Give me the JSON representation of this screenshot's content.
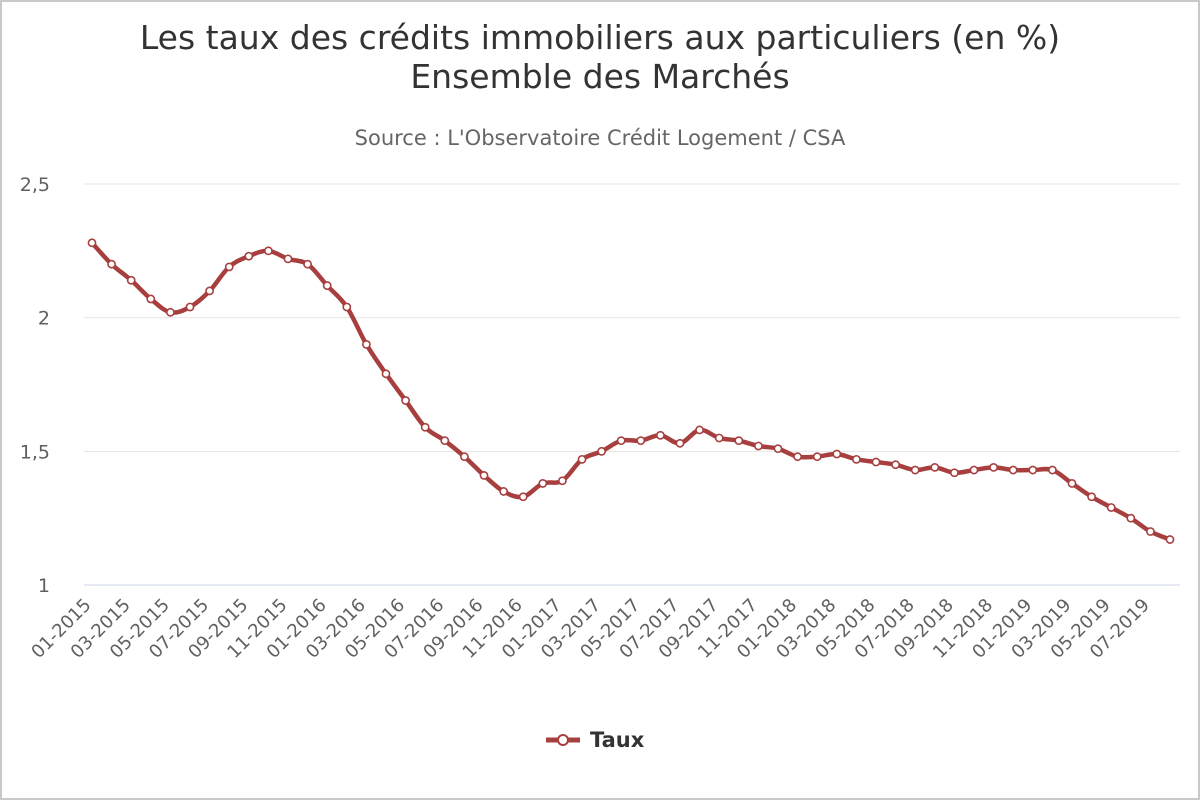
{
  "chart_data": {
    "type": "line",
    "title_line1": "Les taux des crédits immobiliers aux particuliers (en %)",
    "title_line2": "Ensemble des Marchés",
    "subtitle": "Source : L'Observatoire Crédit Logement / CSA",
    "xlabel": "",
    "ylabel": "",
    "ylim": [
      1,
      2.5
    ],
    "y_ticks": [
      "1",
      "1,5",
      "2",
      "2,5"
    ],
    "grid": "horizontal",
    "legend_position": "bottom-center",
    "line_color": "#a83f3f",
    "x": [
      "01-2015",
      "02-2015",
      "03-2015",
      "04-2015",
      "05-2015",
      "06-2015",
      "07-2015",
      "08-2015",
      "09-2015",
      "10-2015",
      "11-2015",
      "12-2015",
      "01-2016",
      "02-2016",
      "03-2016",
      "04-2016",
      "05-2016",
      "06-2016",
      "07-2016",
      "08-2016",
      "09-2016",
      "10-2016",
      "11-2016",
      "12-2016",
      "01-2017",
      "02-2017",
      "03-2017",
      "04-2017",
      "05-2017",
      "06-2017",
      "07-2017",
      "08-2017",
      "09-2017",
      "10-2017",
      "11-2017",
      "12-2017",
      "01-2018",
      "02-2018",
      "03-2018",
      "04-2018",
      "05-2018",
      "06-2018",
      "07-2018",
      "08-2018",
      "09-2018",
      "10-2018",
      "11-2018",
      "12-2018",
      "01-2019",
      "02-2019",
      "03-2019",
      "04-2019",
      "05-2019",
      "06-2019",
      "07-2019",
      "08-2019"
    ],
    "x_tick_labels": [
      "01-2015",
      "03-2015",
      "05-2015",
      "07-2015",
      "09-2015",
      "11-2015",
      "01-2016",
      "03-2016",
      "05-2016",
      "07-2016",
      "09-2016",
      "11-2016",
      "01-2017",
      "03-2017",
      "05-2017",
      "07-2017",
      "09-2017",
      "11-2017",
      "01-2018",
      "03-2018",
      "05-2018",
      "07-2018",
      "09-2018",
      "11-2018",
      "01-2019",
      "03-2019",
      "05-2019",
      "07-2019"
    ],
    "series": [
      {
        "name": "Taux",
        "values": [
          2.28,
          2.2,
          2.14,
          2.07,
          2.02,
          2.04,
          2.1,
          2.19,
          2.23,
          2.25,
          2.22,
          2.2,
          2.12,
          2.04,
          1.9,
          1.79,
          1.69,
          1.59,
          1.54,
          1.48,
          1.41,
          1.35,
          1.33,
          1.38,
          1.39,
          1.47,
          1.5,
          1.54,
          1.54,
          1.56,
          1.53,
          1.58,
          1.55,
          1.54,
          1.52,
          1.51,
          1.48,
          1.48,
          1.49,
          1.47,
          1.46,
          1.45,
          1.43,
          1.44,
          1.42,
          1.43,
          1.44,
          1.43,
          1.43,
          1.43,
          1.38,
          1.33,
          1.29,
          1.25,
          1.2,
          1.17
        ]
      }
    ]
  }
}
